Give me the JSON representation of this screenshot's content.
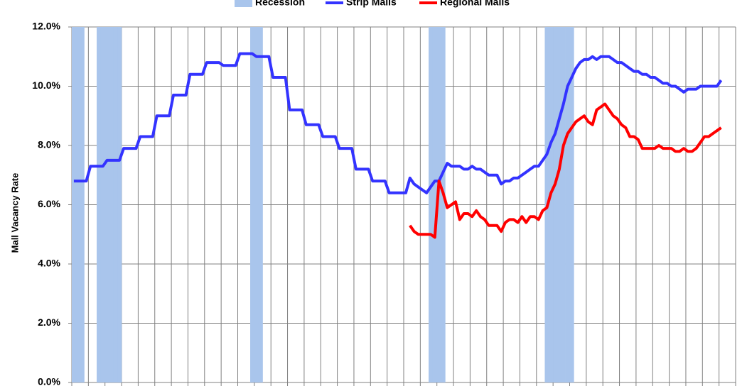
{
  "chart_data": {
    "type": "line",
    "ylabel": "Mall Vacancy Rate",
    "categories": [
      null,
      null,
      null,
      null,
      null,
      null,
      null,
      null,
      null,
      null,
      null,
      null,
      null,
      null,
      null,
      null,
      null,
      null,
      null,
      null,
      null,
      null,
      null,
      null,
      null,
      null,
      null,
      null,
      null,
      null,
      null,
      null,
      null,
      null,
      null,
      null,
      null,
      null,
      null,
      null,
      null,
      null,
      null,
      null,
      null,
      null,
      null,
      null,
      null,
      null,
      null,
      null,
      null,
      null,
      null,
      null,
      null,
      null,
      null,
      null,
      null,
      null,
      null,
      null,
      null,
      null,
      null,
      null,
      null,
      null,
      null,
      null,
      null,
      null,
      null,
      null,
      null,
      null,
      null,
      null,
      null,
      null,
      null,
      null,
      null,
      null,
      null,
      null,
      null,
      null,
      null,
      null,
      null,
      null,
      null,
      null,
      null,
      null,
      null,
      null,
      null,
      null,
      null,
      null,
      null,
      null,
      null,
      null,
      null,
      null,
      null,
      null,
      null,
      null,
      null,
      null,
      null,
      null,
      null,
      null,
      null,
      null,
      null,
      null,
      null,
      null,
      null,
      null,
      null,
      null,
      null,
      null,
      null,
      null,
      null,
      null,
      null,
      null,
      null,
      null,
      null,
      null,
      null,
      null,
      null,
      null,
      null,
      null,
      null,
      null,
      null,
      null,
      null,
      null,
      null,
      null,
      null,
      null,
      null,
      null
    ],
    "series": [
      {
        "name": "Recession",
        "type": "bar",
        "color": "#a9c5ec",
        "values": [
          12,
          12,
          12,
          0,
          0,
          0,
          12,
          12,
          12,
          12,
          12,
          12,
          0,
          0,
          0,
          0,
          0,
          0,
          0,
          0,
          0,
          0,
          0,
          0,
          0,
          0,
          0,
          0,
          0,
          0,
          0,
          0,
          0,
          0,
          0,
          0,
          0,
          0,
          0,
          0,
          0,
          0,
          0,
          12,
          12,
          12,
          0,
          0,
          0,
          0,
          0,
          0,
          0,
          0,
          0,
          0,
          0,
          0,
          0,
          0,
          0,
          0,
          0,
          0,
          0,
          0,
          0,
          0,
          0,
          0,
          0,
          0,
          0,
          0,
          0,
          0,
          0,
          0,
          0,
          0,
          0,
          0,
          0,
          0,
          0,
          0,
          12,
          12,
          12,
          12,
          0,
          0,
          0,
          0,
          0,
          0,
          0,
          0,
          0,
          0,
          0,
          0,
          0,
          0,
          0,
          0,
          0,
          0,
          0,
          0,
          0,
          0,
          0,
          0,
          12,
          12,
          12,
          12,
          12,
          12,
          12,
          0,
          0,
          0,
          0,
          0,
          0,
          0,
          0,
          0,
          0,
          0,
          0,
          0,
          0,
          0,
          0,
          0,
          0,
          0,
          0,
          0,
          0,
          0,
          0,
          0,
          0,
          0,
          0,
          0,
          0,
          0,
          0,
          0,
          0,
          0,
          0,
          0,
          0,
          0
        ]
      },
      {
        "name": "Strip Malls",
        "type": "line",
        "color": "#3333ff",
        "values": [
          6.8,
          6.8,
          6.8,
          6.8,
          7.3,
          7.3,
          7.3,
          7.3,
          7.5,
          7.5,
          7.5,
          7.5,
          7.9,
          7.9,
          7.9,
          7.9,
          8.3,
          8.3,
          8.3,
          8.3,
          9.0,
          9.0,
          9.0,
          9.0,
          9.7,
          9.7,
          9.7,
          9.7,
          10.4,
          10.4,
          10.4,
          10.4,
          10.8,
          10.8,
          10.8,
          10.8,
          10.7,
          10.7,
          10.7,
          10.7,
          11.1,
          11.1,
          11.1,
          11.1,
          11.0,
          11.0,
          11.0,
          11.0,
          10.3,
          10.3,
          10.3,
          10.3,
          9.2,
          9.2,
          9.2,
          9.2,
          8.7,
          8.7,
          8.7,
          8.7,
          8.3,
          8.3,
          8.3,
          8.3,
          7.9,
          7.9,
          7.9,
          7.9,
          7.2,
          7.2,
          7.2,
          7.2,
          6.8,
          6.8,
          6.8,
          6.8,
          6.4,
          6.4,
          6.4,
          6.4,
          6.4,
          6.9,
          6.7,
          6.6,
          6.5,
          6.4,
          6.6,
          6.8,
          6.8,
          7.1,
          7.4,
          7.3,
          7.3,
          7.3,
          7.2,
          7.2,
          7.3,
          7.2,
          7.2,
          7.1,
          7.0,
          7.0,
          7.0,
          6.7,
          6.8,
          6.8,
          6.9,
          6.9,
          7.0,
          7.1,
          7.2,
          7.3,
          7.3,
          7.5,
          7.7,
          8.1,
          8.4,
          8.9,
          9.4,
          10.0,
          10.3,
          10.6,
          10.8,
          10.9,
          10.9,
          11.0,
          10.9,
          11.0,
          11.0,
          11.0,
          10.9,
          10.8,
          10.8,
          10.7,
          10.6,
          10.5,
          10.5,
          10.4,
          10.4,
          10.3,
          10.3,
          10.2,
          10.1,
          10.1,
          10.0,
          10.0,
          9.9,
          9.8,
          9.9,
          9.9,
          9.9,
          10.0,
          10.0,
          10.0,
          10.0,
          10.0,
          10.2,
          null,
          null,
          null
        ]
      },
      {
        "name": "Regional Malls",
        "type": "line",
        "color": "#ff0000",
        "values": [
          null,
          null,
          null,
          null,
          null,
          null,
          null,
          null,
          null,
          null,
          null,
          null,
          null,
          null,
          null,
          null,
          null,
          null,
          null,
          null,
          null,
          null,
          null,
          null,
          null,
          null,
          null,
          null,
          null,
          null,
          null,
          null,
          null,
          null,
          null,
          null,
          null,
          null,
          null,
          null,
          null,
          null,
          null,
          null,
          null,
          null,
          null,
          null,
          null,
          null,
          null,
          null,
          null,
          null,
          null,
          null,
          null,
          null,
          null,
          null,
          null,
          null,
          null,
          null,
          null,
          null,
          null,
          null,
          null,
          null,
          null,
          null,
          null,
          null,
          null,
          null,
          null,
          null,
          null,
          null,
          null,
          5.3,
          5.1,
          5.0,
          5.0,
          5.0,
          5.0,
          4.9,
          6.8,
          6.4,
          5.9,
          6.0,
          6.1,
          5.5,
          5.7,
          5.7,
          5.6,
          5.8,
          5.6,
          5.5,
          5.3,
          5.3,
          5.3,
          5.1,
          5.4,
          5.5,
          5.5,
          5.4,
          5.6,
          5.4,
          5.6,
          5.6,
          5.5,
          5.8,
          5.9,
          6.4,
          6.7,
          7.2,
          8.0,
          8.4,
          8.6,
          8.8,
          8.9,
          9.0,
          8.8,
          8.7,
          9.2,
          9.3,
          9.4,
          9.2,
          9.0,
          8.9,
          8.7,
          8.6,
          8.3,
          8.3,
          8.2,
          7.9,
          7.9,
          7.9,
          7.9,
          8.0,
          7.9,
          7.9,
          7.9,
          7.8,
          7.8,
          7.9,
          7.8,
          7.8,
          7.9,
          8.1,
          8.3,
          8.3,
          8.4,
          8.5,
          8.6,
          null,
          null,
          null
        ]
      }
    ],
    "ylim": [
      0,
      12
    ],
    "yticks": [
      {
        "value": 0,
        "label": "0.0%"
      },
      {
        "value": 2,
        "label": "2.0%"
      },
      {
        "value": 4,
        "label": "4.0%"
      },
      {
        "value": 6,
        "label": "6.0%"
      },
      {
        "value": 8,
        "label": "8.0%"
      },
      {
        "value": 10,
        "label": "10.0%"
      },
      {
        "value": 12,
        "label": "12.0%"
      }
    ],
    "grid": true,
    "legend": "top"
  }
}
